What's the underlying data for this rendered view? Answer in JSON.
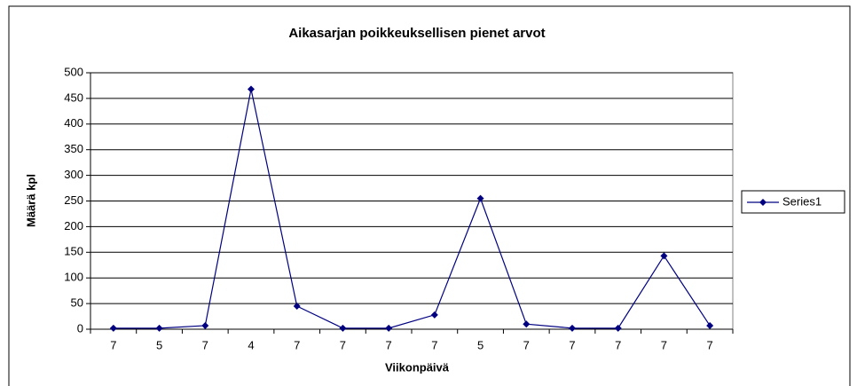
{
  "chart_data": {
    "type": "line",
    "title": "Aikasarjan poikkeuksellisen pienet arvot",
    "x_label": "Viikonpäivä",
    "y_label": "Määrä kpl",
    "categories": [
      "7",
      "5",
      "7",
      "4",
      "7",
      "7",
      "7",
      "7",
      "5",
      "7",
      "7",
      "7",
      "7",
      "7"
    ],
    "series": [
      {
        "name": "Series1",
        "color": "#000080",
        "values": [
          2,
          2,
          7,
          468,
          45,
          2,
          2,
          28,
          255,
          10,
          2,
          2,
          143,
          7
        ]
      }
    ],
    "ylim": [
      0,
      500
    ],
    "yticks": [
      0,
      50,
      100,
      150,
      200,
      250,
      300,
      350,
      400,
      450,
      500
    ],
    "grid": true,
    "legend": "right"
  }
}
